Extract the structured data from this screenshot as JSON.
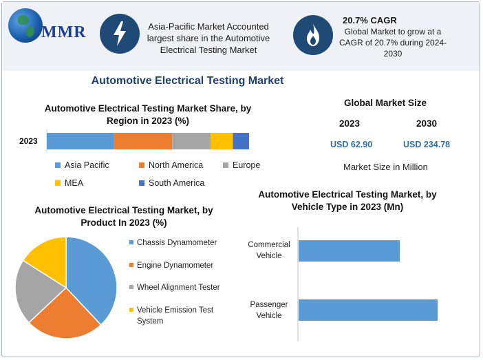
{
  "brand": {
    "logo_text": "MMR"
  },
  "header": {
    "info1": "Asia-Pacific Market Accounted largest share in the Automotive Electrical Testing Market",
    "info2_title": "20.7% CAGR",
    "info2_body": "Global Market to grow at a CAGR of 20.7% during 2024-2030",
    "icons": [
      "lightning-bolt-icon",
      "flame-icon"
    ],
    "icon_bg": "#1f4a75",
    "band_bg": "#eef2f6"
  },
  "main_title": "Automotive Electrical Testing Market",
  "global_market": {
    "title": "Global Market Size",
    "years": [
      "2023",
      "2030"
    ],
    "values": [
      "USD 62.90",
      "USD 234.78"
    ],
    "note": "Market Size in Million"
  },
  "chart_data": [
    {
      "type": "bar",
      "orientation": "horizontal-stacked",
      "title": "Automotive Electrical Testing Market Share, by Region in 2023 (%)",
      "categories": [
        "2023"
      ],
      "series": [
        {
          "name": "Asia Pacific",
          "values": [
            33
          ],
          "color": "#5b9bd5"
        },
        {
          "name": "North America",
          "values": [
            29
          ],
          "color": "#ed7d31"
        },
        {
          "name": "Europe",
          "values": [
            19
          ],
          "color": "#a5a5a5"
        },
        {
          "name": "MEA",
          "values": [
            11
          ],
          "color": "#ffc000"
        },
        {
          "name": "South America",
          "values": [
            8
          ],
          "color": "#4472c4"
        }
      ],
      "legend_position": "bottom"
    },
    {
      "type": "pie",
      "title": "Automotive Electrical Testing Market, by Product In 2023 (%)",
      "categories": [
        "Chassis Dynamometer",
        "Engine Dynamometer",
        "Wheel Alignment Tester",
        "Vehicle Emission Test System"
      ],
      "values": [
        38,
        25,
        21,
        16
      ],
      "colors": [
        "#5b9bd5",
        "#ed7d31",
        "#a5a5a5",
        "#ffc000"
      ],
      "legend_position": "right"
    },
    {
      "type": "bar",
      "orientation": "horizontal",
      "title": "Automotive Electrical Testing Market, by Vehicle Type in 2023 (Mn)",
      "categories": [
        "Commercial Vehicle",
        "Passenger Vehicle"
      ],
      "values": [
        24,
        33
      ],
      "color": "#5b9bd5",
      "xlim": [
        0,
        40
      ]
    }
  ]
}
